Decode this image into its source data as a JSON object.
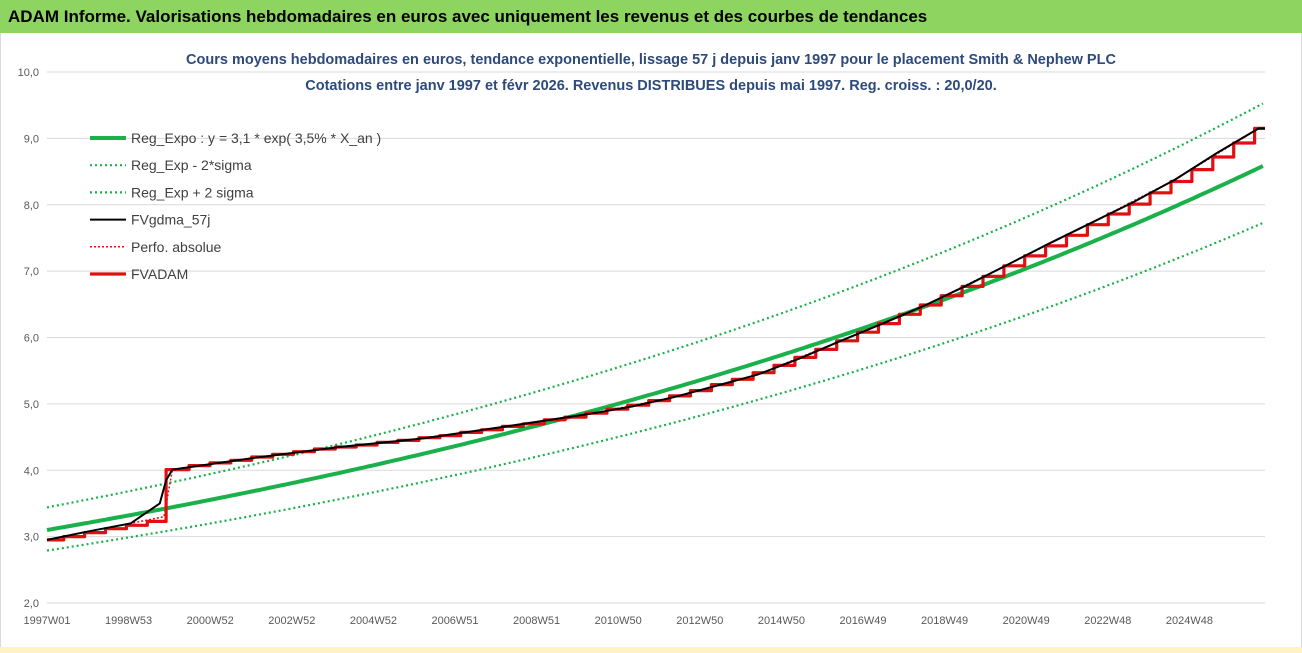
{
  "banner": {
    "title": "ADAM Informe. Valorisations hebdomadaires en euros avec uniquement les revenus et des courbes de tendances"
  },
  "chart_data": {
    "type": "line",
    "title": "Cours moyens hebdomadaires en euros, tendance exponentielle, lissage 57 j depuis janv 1997 pour le placement Smith & Nephew PLC",
    "subtitle": "Cotations entre janv 1997 et févr 2026. Revenus DISTRIBUES depuis mai 1997. Reg. croiss. : 20,0/20.",
    "xlabel": "",
    "ylabel": "",
    "x_tick_labels": [
      "1997W01",
      "1998W53",
      "2000W52",
      "2002W52",
      "2004W52",
      "2006W51",
      "2008W51",
      "2010W50",
      "2012W50",
      "2014W50",
      "2016W49",
      "2018W49",
      "2020W49",
      "2022W48",
      "2024W48"
    ],
    "y_tick_labels": [
      "2,0",
      "3,0",
      "4,0",
      "5,0",
      "6,0",
      "7,0",
      "8,0",
      "9,0",
      "10,0"
    ],
    "ylim": [
      2.0,
      10.0
    ],
    "xlim_years": [
      1997.0,
      2026.15
    ],
    "grid": {
      "horizontal": true,
      "vertical": false
    },
    "legend_position": "top-left",
    "colors": {
      "green": "#1ab04a",
      "black": "#000000",
      "red": "#e01010",
      "grid": "#d9d9d9"
    },
    "series": [
      {
        "name": "Reg_Expo : y = 3,1 * exp( 3,5% *  X_an )",
        "style": "solid-green",
        "formula": {
          "a": 3.1,
          "rate": 0.035,
          "start_year": 1997.0
        }
      },
      {
        "name": "Reg_Exp - 2*sigma",
        "style": "dotted-green",
        "formula": {
          "a": 2.79,
          "rate": 0.035,
          "start_year": 1997.0
        }
      },
      {
        "name": "Reg_Exp + 2 sigma",
        "style": "dotted-green",
        "formula": {
          "a": 3.44,
          "rate": 0.035,
          "start_year": 1997.0
        }
      },
      {
        "name": "FVgdma_57j",
        "style": "solid-black",
        "x": [
          1997.0,
          1998.0,
          1999.0,
          1999.7,
          1999.85,
          2000.0,
          2001.0,
          2002.0,
          2004.0,
          2006.0,
          2008.0,
          2010.0,
          2011.0,
          2012.0,
          2013.0,
          2014.0,
          2015.0,
          2016.0,
          2017.0,
          2018.0,
          2019.0,
          2020.0,
          2021.0,
          2022.0,
          2023.0,
          2024.0,
          2025.0,
          2026.0
        ],
        "values": [
          2.95,
          3.08,
          3.2,
          3.5,
          3.85,
          4.01,
          4.1,
          4.19,
          4.35,
          4.48,
          4.66,
          4.85,
          4.96,
          5.1,
          5.27,
          5.44,
          5.68,
          5.95,
          6.21,
          6.48,
          6.78,
          7.1,
          7.42,
          7.73,
          8.04,
          8.38,
          8.78,
          9.15
        ]
      },
      {
        "name": "Perfo. absolue",
        "style": "dotted-red",
        "x": [
          1997.0,
          1998.0,
          1999.0,
          1999.8,
          2000.0,
          2002.0,
          2004.0,
          2006.0,
          2008.0,
          2010.0,
          2012.0,
          2014.0,
          2016.0,
          2018.0,
          2020.0,
          2022.0,
          2024.0,
          2026.0
        ],
        "values": [
          2.95,
          3.08,
          3.2,
          3.3,
          4.01,
          4.19,
          4.35,
          4.48,
          4.66,
          4.85,
          5.1,
          5.44,
          5.95,
          6.48,
          7.1,
          7.73,
          8.38,
          9.15
        ]
      },
      {
        "name": "FVADAM",
        "style": "solid-red-step",
        "x": [
          1997.0,
          1997.4,
          1997.9,
          1998.4,
          1998.9,
          1999.4,
          1999.85,
          2000.4,
          2000.9,
          2001.4,
          2001.9,
          2002.4,
          2002.9,
          2003.4,
          2003.9,
          2004.4,
          2004.9,
          2005.4,
          2005.9,
          2006.4,
          2006.9,
          2007.4,
          2007.9,
          2008.4,
          2008.9,
          2009.4,
          2009.9,
          2010.4,
          2010.9,
          2011.4,
          2011.9,
          2012.4,
          2012.9,
          2013.4,
          2013.9,
          2014.4,
          2014.9,
          2015.4,
          2015.9,
          2016.4,
          2016.9,
          2017.4,
          2017.9,
          2018.4,
          2018.9,
          2019.4,
          2019.9,
          2020.4,
          2020.9,
          2021.4,
          2021.9,
          2022.4,
          2022.9,
          2023.4,
          2023.9,
          2024.4,
          2024.9,
          2025.4,
          2025.9
        ],
        "values": [
          2.95,
          3.0,
          3.06,
          3.12,
          3.17,
          3.23,
          4.01,
          4.07,
          4.11,
          4.15,
          4.2,
          4.24,
          4.28,
          4.32,
          4.35,
          4.38,
          4.42,
          4.45,
          4.49,
          4.52,
          4.57,
          4.61,
          4.66,
          4.7,
          4.76,
          4.8,
          4.86,
          4.92,
          4.98,
          5.05,
          5.12,
          5.2,
          5.29,
          5.37,
          5.47,
          5.58,
          5.7,
          5.82,
          5.95,
          6.08,
          6.21,
          6.35,
          6.49,
          6.63,
          6.77,
          6.92,
          7.08,
          7.23,
          7.38,
          7.54,
          7.7,
          7.86,
          8.01,
          8.18,
          8.35,
          8.53,
          8.72,
          8.93,
          9.15
        ]
      }
    ]
  }
}
